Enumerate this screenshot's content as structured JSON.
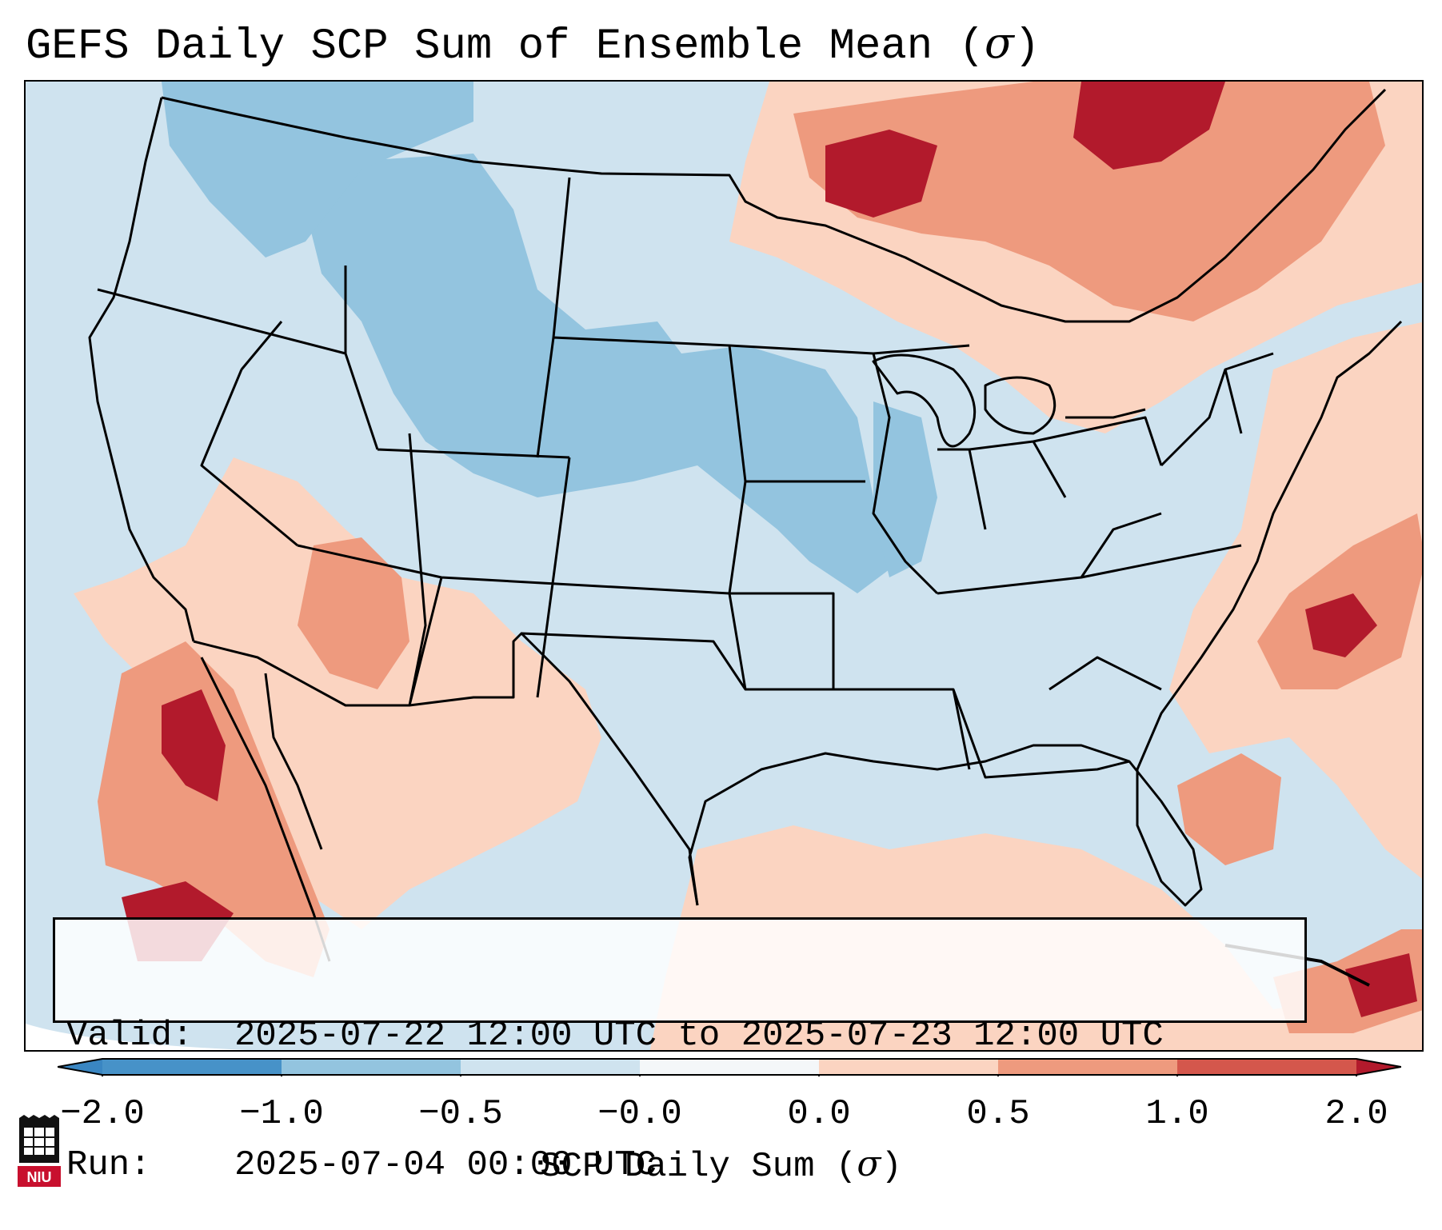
{
  "title": "GEFS Daily SCP Sum of Ensemble Mean (σ)",
  "title_main": "GEFS Daily SCP Sum of Ensemble Mean (",
  "title_sigma": "σ",
  "title_close": ")",
  "info": {
    "valid_label": "Valid:",
    "valid_value": "2025-07-22 12:00 UTC to 2025-07-23 12:00 UTC",
    "run_label": "Run:",
    "run_value": "2025-07-04 00:00 UTC"
  },
  "colorbar": {
    "ticks": [
      "−2.0",
      "−1.0",
      "−0.5",
      "−0.0",
      "0.0",
      "0.5",
      "1.0",
      "2.0"
    ],
    "colors": {
      "extend_low": "#3a86c2",
      "b1": "#4792c8",
      "b2": "#93c4df",
      "b3": "#cfe3ef",
      "b4": "#f4f7f9",
      "b5": "#fbf6f3",
      "b6": "#fbd4c1",
      "b7": "#ee9a7e",
      "b8": "#d4574c",
      "extend_high": "#b21a2c"
    },
    "label_main": "SCP Daily Sum (",
    "label_sigma": "σ",
    "label_close": ")"
  },
  "map": {
    "background": "#cfe3ef",
    "pos_weak": "#fbd4c1",
    "pos_mod": "#ee9a7e",
    "pos_strong": "#d4574c",
    "pos_max": "#b21a2c",
    "neg_weak": "#93c4df"
  },
  "logo": {
    "text": "NIU",
    "color": "#c8102e"
  }
}
